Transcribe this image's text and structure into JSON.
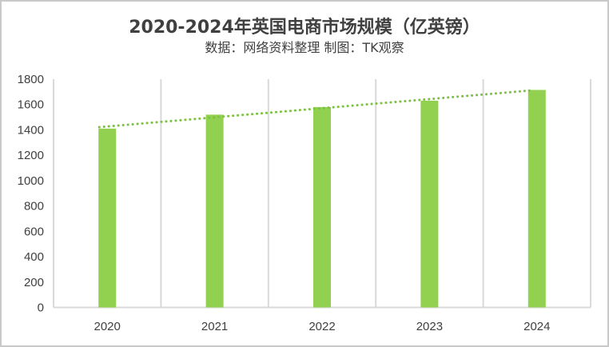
{
  "chart_data": {
    "type": "bar",
    "title": "2020-2024年英国电商市场规模（亿英镑）",
    "subtitle": "数据：网络资料整理 制图：TK观察",
    "categories": [
      "2020",
      "2021",
      "2022",
      "2023",
      "2024"
    ],
    "series": [
      {
        "name": "英国电商市场规模（亿英镑）",
        "values": [
          1410,
          1520,
          1580,
          1630,
          1715
        ],
        "color": "#92d050"
      }
    ],
    "trendline": {
      "type": "linear",
      "style": "dotted",
      "color": "#7cc242"
    },
    "xlabel": "",
    "ylabel": "",
    "ylim": [
      0,
      1800
    ],
    "yticks": [
      "0",
      "200",
      "400",
      "600",
      "800",
      "1000",
      "1200",
      "1400",
      "1600",
      "1800"
    ],
    "grid": {
      "vertical": true,
      "horizontal": false,
      "color": "#d9d9d9"
    },
    "legend": "none"
  },
  "header": {
    "title": "2020-2024年英国电商市场规模（亿英镑）",
    "subtitle": "数据：网络资料整理 制图：TK观察"
  }
}
